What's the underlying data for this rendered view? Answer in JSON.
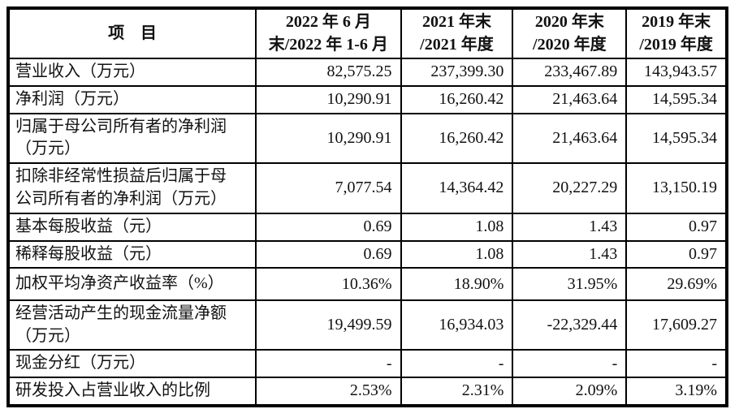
{
  "page": {
    "background_color": "#ffffff",
    "border_color": "#000000",
    "text_color": "#111111"
  },
  "table": {
    "header": {
      "item_col": "项　目",
      "period_cols": [
        "2022 年 6 月\n末/2022 年 1-6 月",
        "2021 年末\n/2021 年度",
        "2020 年末\n/2020 年度",
        "2019 年末\n/2019 年度"
      ]
    },
    "rows": [
      {
        "label": "营业收入（万元）",
        "values": [
          "82,575.25",
          "237,399.30",
          "233,467.89",
          "143,943.57"
        ]
      },
      {
        "label": "净利润（万元）",
        "values": [
          "10,290.91",
          "16,260.42",
          "21,463.64",
          "14,595.34"
        ]
      },
      {
        "label": "归属于母公司所有者的净利润\n（万元）",
        "values": [
          "10,290.91",
          "16,260.42",
          "21,463.64",
          "14,595.34"
        ]
      },
      {
        "label": "扣除非经常性损益后归属于母\n公司所有者的净利润（万元）",
        "values": [
          "7,077.54",
          "14,364.42",
          "20,227.29",
          "13,150.19"
        ]
      },
      {
        "label": "基本每股收益（元）",
        "values": [
          "0.69",
          "1.08",
          "1.43",
          "0.97"
        ]
      },
      {
        "label": "稀释每股收益（元）",
        "values": [
          "0.69",
          "1.08",
          "1.43",
          "0.97"
        ]
      },
      {
        "label": "加权平均净资产收益率（%）",
        "values": [
          "10.36%",
          "18.90%",
          "31.95%",
          "29.69%"
        ]
      },
      {
        "label": "经营活动产生的现金流量净额\n（万元）",
        "values": [
          "19,499.59",
          "16,934.03",
          "-22,329.44",
          "17,609.27"
        ]
      },
      {
        "label": "现金分红（万元）",
        "values": [
          "-",
          "-",
          "-",
          "-"
        ]
      },
      {
        "label": "研发投入占营业收入的比例",
        "values": [
          "2.53%",
          "2.31%",
          "2.09%",
          "3.19%"
        ]
      }
    ]
  }
}
